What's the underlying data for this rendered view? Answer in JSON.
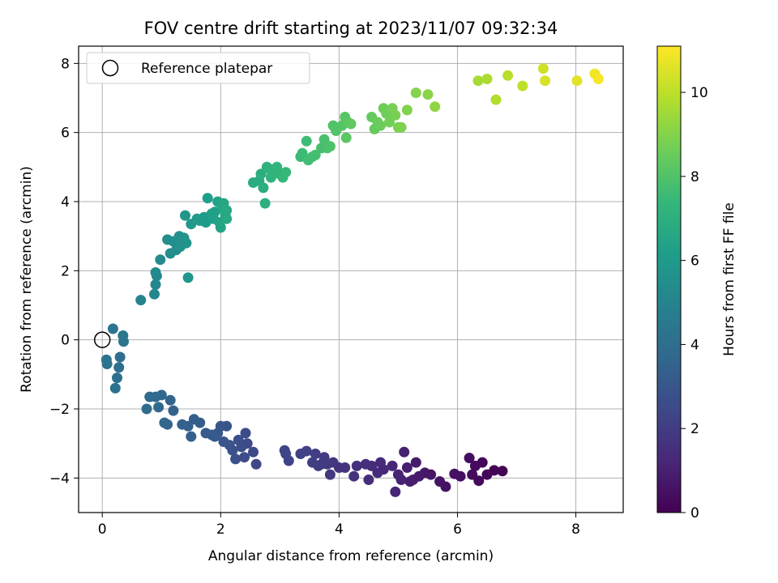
{
  "chart_data": {
    "type": "scatter",
    "title": "FOV centre drift starting at 2023/11/07 09:32:34",
    "xlabel": "Angular distance from reference (arcmin)",
    "ylabel": "Rotation from reference (arcmin)",
    "xlim": [
      -0.4,
      8.8
    ],
    "ylim": [
      -5.0,
      8.5
    ],
    "xticks": [
      0,
      2,
      4,
      6,
      8
    ],
    "yticks": [
      -4,
      -2,
      0,
      2,
      4,
      6,
      8
    ],
    "grid": true,
    "legend": {
      "placement": "top-left",
      "entries": [
        "Reference platepar"
      ]
    },
    "reference_point": {
      "x": 0,
      "y": 0
    },
    "colorbar": {
      "label": "Hours from first FF file",
      "colormap": "viridis",
      "range": [
        0,
        11.1
      ],
      "ticks": [
        0,
        2,
        4,
        6,
        8,
        10
      ]
    },
    "color_stops": [
      "#440154",
      "#482878",
      "#3e4989",
      "#31688e",
      "#26828e",
      "#1f9e89",
      "#35b779",
      "#6ece58",
      "#b5de2b",
      "#fde725"
    ],
    "points": [
      [
        6.76,
        -3.8,
        0.05
      ],
      [
        6.62,
        -3.78,
        0.1
      ],
      [
        6.5,
        -3.9,
        0.15
      ],
      [
        6.42,
        -3.55,
        0.2
      ],
      [
        6.36,
        -4.08,
        0.25
      ],
      [
        6.3,
        -3.65,
        0.3
      ],
      [
        6.25,
        -3.9,
        0.35
      ],
      [
        6.2,
        -3.42,
        0.4
      ],
      [
        6.05,
        -3.95,
        0.45
      ],
      [
        5.95,
        -3.88,
        0.5
      ],
      [
        5.8,
        -4.25,
        0.55
      ],
      [
        5.7,
        -4.1,
        0.6
      ],
      [
        5.55,
        -3.9,
        0.65
      ],
      [
        5.45,
        -3.85,
        0.7
      ],
      [
        5.35,
        -3.95,
        0.75
      ],
      [
        5.3,
        -3.55,
        0.8
      ],
      [
        5.25,
        -4.05,
        0.85
      ],
      [
        5.2,
        -4.1,
        0.9
      ],
      [
        5.15,
        -3.7,
        0.95
      ],
      [
        5.1,
        -3.25,
        1.0
      ],
      [
        5.05,
        -4.05,
        1.05
      ],
      [
        5.0,
        -3.9,
        1.1
      ],
      [
        4.95,
        -4.4,
        1.15
      ],
      [
        4.9,
        -3.65,
        1.2
      ],
      [
        4.75,
        -3.75,
        1.25
      ],
      [
        4.7,
        -3.55,
        1.3
      ],
      [
        4.65,
        -3.85,
        1.35
      ],
      [
        4.55,
        -3.65,
        1.4
      ],
      [
        4.5,
        -4.05,
        1.45
      ],
      [
        4.45,
        -3.6,
        1.5
      ],
      [
        4.3,
        -3.65,
        1.55
      ],
      [
        4.25,
        -3.95,
        1.6
      ],
      [
        4.1,
        -3.7,
        1.65
      ],
      [
        4.0,
        -3.7,
        1.7
      ],
      [
        3.9,
        -3.55,
        1.75
      ],
      [
        3.85,
        -3.9,
        1.8
      ],
      [
        3.8,
        -3.6,
        1.85
      ],
      [
        3.75,
        -3.4,
        1.9
      ],
      [
        3.7,
        -3.6,
        1.95
      ],
      [
        3.65,
        -3.65,
        2.0
      ],
      [
        3.6,
        -3.3,
        2.05
      ],
      [
        3.55,
        -3.55,
        2.1
      ],
      [
        3.45,
        -3.22,
        2.15
      ],
      [
        3.35,
        -3.3,
        2.2
      ],
      [
        3.15,
        -3.5,
        2.25
      ],
      [
        3.1,
        -3.3,
        2.3
      ],
      [
        3.08,
        -3.2,
        2.35
      ],
      [
        2.6,
        -3.6,
        2.4
      ],
      [
        2.55,
        -3.25,
        2.45
      ],
      [
        2.45,
        -3.0,
        2.5
      ],
      [
        2.42,
        -2.7,
        2.55
      ],
      [
        2.4,
        -3.4,
        2.6
      ],
      [
        2.35,
        -3.1,
        2.65
      ],
      [
        2.3,
        -2.9,
        2.7
      ],
      [
        2.25,
        -3.45,
        2.75
      ],
      [
        2.2,
        -3.2,
        2.8
      ],
      [
        2.15,
        -3.05,
        2.85
      ],
      [
        2.1,
        -2.5,
        2.9
      ],
      [
        2.05,
        -2.95,
        2.95
      ],
      [
        2.0,
        -2.5,
        3.0
      ],
      [
        1.95,
        -2.7,
        3.05
      ],
      [
        1.9,
        -2.8,
        3.1
      ],
      [
        1.85,
        -2.75,
        3.15
      ],
      [
        1.75,
        -2.7,
        3.2
      ],
      [
        1.65,
        -2.4,
        3.25
      ],
      [
        1.55,
        -2.3,
        3.3
      ],
      [
        1.5,
        -2.8,
        3.35
      ],
      [
        1.45,
        -2.5,
        3.4
      ],
      [
        1.35,
        -2.45,
        3.45
      ],
      [
        1.2,
        -2.05,
        3.5
      ],
      [
        1.15,
        -1.75,
        3.55
      ],
      [
        1.1,
        -2.45,
        3.6
      ],
      [
        1.05,
        -2.4,
        3.65
      ],
      [
        1.0,
        -1.6,
        3.7
      ],
      [
        0.95,
        -1.95,
        3.75
      ],
      [
        0.9,
        -1.65,
        3.8
      ],
      [
        0.8,
        -1.65,
        3.85
      ],
      [
        0.75,
        -2.0,
        3.9
      ],
      [
        0.3,
        -0.5,
        4.0
      ],
      [
        0.28,
        -0.8,
        4.05
      ],
      [
        0.25,
        -1.1,
        4.1
      ],
      [
        0.22,
        -1.4,
        4.15
      ],
      [
        0.08,
        -0.7,
        4.2
      ],
      [
        0.07,
        -0.58,
        4.25
      ],
      [
        0.18,
        0.32,
        4.3
      ],
      [
        0.36,
        -0.05,
        4.35
      ],
      [
        0.35,
        0.12,
        4.4
      ],
      [
        0.65,
        1.15,
        5.0
      ],
      [
        0.88,
        1.32,
        5.1
      ],
      [
        0.9,
        1.6,
        5.15
      ],
      [
        0.92,
        1.85,
        5.2
      ],
      [
        0.9,
        1.95,
        5.25
      ],
      [
        0.98,
        2.32,
        5.3
      ],
      [
        1.1,
        2.9,
        5.4
      ],
      [
        1.15,
        2.5,
        5.45
      ],
      [
        1.2,
        2.85,
        5.5
      ],
      [
        1.25,
        2.6,
        5.55
      ],
      [
        1.3,
        3.0,
        5.6
      ],
      [
        1.32,
        2.7,
        5.65
      ],
      [
        1.38,
        2.95,
        5.7
      ],
      [
        1.42,
        2.8,
        5.75
      ],
      [
        1.45,
        1.8,
        5.8
      ],
      [
        1.4,
        3.6,
        5.85
      ],
      [
        1.5,
        3.35,
        5.9
      ],
      [
        1.6,
        3.5,
        5.95
      ],
      [
        1.65,
        3.45,
        6.0
      ],
      [
        1.72,
        3.55,
        6.05
      ],
      [
        1.75,
        3.4,
        6.1
      ],
      [
        1.78,
        4.1,
        6.15
      ],
      [
        1.85,
        3.65,
        6.2
      ],
      [
        1.88,
        3.5,
        6.25
      ],
      [
        1.9,
        3.7,
        6.3
      ],
      [
        1.95,
        4.0,
        6.35
      ],
      [
        1.98,
        3.4,
        6.4
      ],
      [
        2.0,
        3.25,
        6.45
      ],
      [
        2.02,
        3.8,
        6.5
      ],
      [
        2.05,
        3.95,
        6.55
      ],
      [
        2.08,
        3.6,
        6.6
      ],
      [
        2.1,
        3.75,
        6.65
      ],
      [
        2.1,
        3.5,
        6.7
      ],
      [
        2.55,
        4.55,
        6.8
      ],
      [
        2.65,
        4.6,
        6.85
      ],
      [
        2.68,
        4.8,
        6.9
      ],
      [
        2.72,
        4.4,
        6.95
      ],
      [
        2.75,
        3.95,
        7.0
      ],
      [
        2.78,
        5.0,
        7.05
      ],
      [
        2.82,
        4.95,
        7.1
      ],
      [
        2.85,
        4.7,
        7.15
      ],
      [
        2.88,
        4.85,
        7.2
      ],
      [
        2.95,
        5.0,
        7.25
      ],
      [
        3.0,
        4.8,
        7.3
      ],
      [
        3.05,
        4.7,
        7.35
      ],
      [
        3.1,
        4.85,
        7.4
      ],
      [
        3.35,
        5.3,
        7.5
      ],
      [
        3.38,
        5.4,
        7.55
      ],
      [
        3.45,
        5.75,
        7.6
      ],
      [
        3.48,
        5.2,
        7.65
      ],
      [
        3.55,
        5.3,
        7.7
      ],
      [
        3.6,
        5.35,
        7.75
      ],
      [
        3.7,
        5.55,
        7.8
      ],
      [
        3.75,
        5.8,
        7.85
      ],
      [
        3.8,
        5.55,
        7.9
      ],
      [
        3.85,
        5.6,
        7.95
      ],
      [
        3.9,
        6.2,
        8.0
      ],
      [
        3.95,
        6.05,
        8.05
      ],
      [
        4.05,
        6.2,
        8.1
      ],
      [
        4.1,
        6.45,
        8.15
      ],
      [
        4.12,
        5.85,
        8.2
      ],
      [
        4.15,
        6.3,
        8.25
      ],
      [
        4.2,
        6.25,
        8.3
      ],
      [
        4.55,
        6.45,
        8.4
      ],
      [
        4.6,
        6.1,
        8.45
      ],
      [
        4.65,
        6.3,
        8.5
      ],
      [
        4.7,
        6.2,
        8.55
      ],
      [
        4.75,
        6.7,
        8.6
      ],
      [
        4.8,
        6.55,
        8.65
      ],
      [
        4.85,
        6.3,
        8.7
      ],
      [
        4.9,
        6.7,
        8.75
      ],
      [
        4.95,
        6.5,
        8.8
      ],
      [
        5.0,
        6.15,
        8.85
      ],
      [
        5.05,
        6.15,
        8.9
      ],
      [
        5.15,
        6.65,
        8.95
      ],
      [
        5.3,
        7.15,
        9.0
      ],
      [
        5.5,
        7.1,
        9.1
      ],
      [
        5.62,
        6.75,
        9.2
      ],
      [
        6.35,
        7.5,
        9.6
      ],
      [
        6.5,
        7.55,
        9.7
      ],
      [
        6.65,
        6.95,
        9.8
      ],
      [
        6.85,
        7.65,
        9.9
      ],
      [
        7.1,
        7.35,
        10.0
      ],
      [
        7.45,
        7.85,
        10.3
      ],
      [
        7.48,
        7.5,
        10.4
      ],
      [
        8.02,
        7.5,
        10.6
      ],
      [
        8.32,
        7.7,
        10.9
      ],
      [
        8.38,
        7.55,
        11.0
      ]
    ]
  }
}
